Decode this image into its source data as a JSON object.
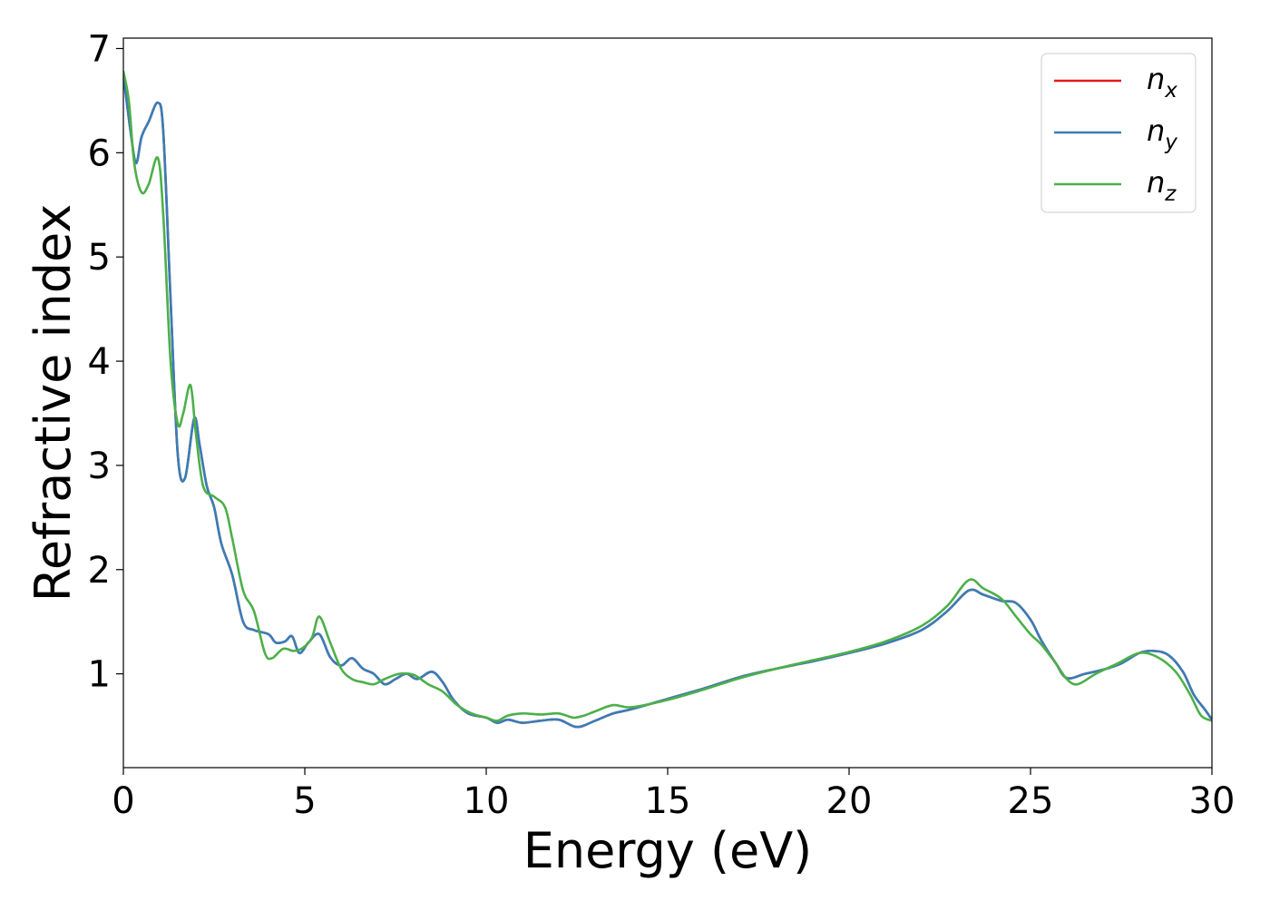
{
  "chart_data": {
    "type": "line",
    "title": "",
    "xlabel": "Energy (eV)",
    "ylabel": "Refractive index",
    "xlim": [
      0,
      30
    ],
    "ylim": [
      0.1,
      7.1
    ],
    "xticks": [
      0,
      5,
      10,
      15,
      20,
      25,
      30
    ],
    "xtick_labels": [
      "0",
      "5",
      "10",
      "15",
      "20",
      "25",
      "30"
    ],
    "yticks": [
      1,
      2,
      3,
      4,
      5,
      6,
      7
    ],
    "ytick_labels": [
      "1",
      "2",
      "3",
      "4",
      "5",
      "6",
      "7"
    ],
    "grid": false,
    "legend_position": "top-right",
    "series": [
      {
        "name": "n",
        "subscript": "x",
        "color": "#e41a1c",
        "x": [
          0,
          0.2,
          0.35,
          0.5,
          0.7,
          0.95,
          1.1,
          1.3,
          1.5,
          1.7,
          1.95,
          2.1,
          2.3,
          2.5,
          2.7,
          3.0,
          3.3,
          3.6,
          4.0,
          4.2,
          4.45,
          4.65,
          4.85,
          5.1,
          5.4,
          5.7,
          6.0,
          6.3,
          6.6,
          6.9,
          7.2,
          7.5,
          7.8,
          8.1,
          8.5,
          8.8,
          9.1,
          9.5,
          10.0,
          10.3,
          10.6,
          11.0,
          11.5,
          12.0,
          12.5,
          13.0,
          13.5,
          14.0,
          15.0,
          16.0,
          17.0,
          18.0,
          19.0,
          20.0,
          21.0,
          22.0,
          22.7,
          23.3,
          23.7,
          24.2,
          24.6,
          25.0,
          25.3,
          25.7,
          26.0,
          26.5,
          27.0,
          27.5,
          28.0,
          28.4,
          28.8,
          29.2,
          29.5,
          29.8,
          30.0
        ],
        "y": [
          6.75,
          6.2,
          5.9,
          6.15,
          6.3,
          6.48,
          6.2,
          4.6,
          3.1,
          2.88,
          3.45,
          3.2,
          2.8,
          2.6,
          2.25,
          1.95,
          1.5,
          1.42,
          1.38,
          1.3,
          1.31,
          1.36,
          1.2,
          1.3,
          1.38,
          1.16,
          1.08,
          1.15,
          1.05,
          1.0,
          0.9,
          0.95,
          1.0,
          0.95,
          1.02,
          0.92,
          0.75,
          0.62,
          0.58,
          0.53,
          0.56,
          0.53,
          0.55,
          0.56,
          0.49,
          0.55,
          0.62,
          0.66,
          0.76,
          0.86,
          0.97,
          1.05,
          1.12,
          1.2,
          1.29,
          1.42,
          1.6,
          1.8,
          1.76,
          1.7,
          1.68,
          1.52,
          1.32,
          1.1,
          0.96,
          1.0,
          1.04,
          1.1,
          1.2,
          1.22,
          1.18,
          1.02,
          0.8,
          0.66,
          0.56
        ]
      },
      {
        "name": "n",
        "subscript": "y",
        "color": "#377eb8",
        "x": [
          0,
          0.2,
          0.35,
          0.5,
          0.7,
          0.95,
          1.1,
          1.3,
          1.5,
          1.7,
          1.95,
          2.1,
          2.3,
          2.5,
          2.7,
          3.0,
          3.3,
          3.6,
          4.0,
          4.2,
          4.45,
          4.65,
          4.85,
          5.1,
          5.4,
          5.7,
          6.0,
          6.3,
          6.6,
          6.9,
          7.2,
          7.5,
          7.8,
          8.1,
          8.5,
          8.8,
          9.1,
          9.5,
          10.0,
          10.3,
          10.6,
          11.0,
          11.5,
          12.0,
          12.5,
          13.0,
          13.5,
          14.0,
          15.0,
          16.0,
          17.0,
          18.0,
          19.0,
          20.0,
          21.0,
          22.0,
          22.7,
          23.3,
          23.7,
          24.2,
          24.6,
          25.0,
          25.3,
          25.7,
          26.0,
          26.5,
          27.0,
          27.5,
          28.0,
          28.4,
          28.8,
          29.2,
          29.5,
          29.8,
          30.0
        ],
        "y": [
          6.75,
          6.2,
          5.9,
          6.15,
          6.3,
          6.48,
          6.2,
          4.6,
          3.1,
          2.88,
          3.45,
          3.2,
          2.8,
          2.6,
          2.25,
          1.95,
          1.5,
          1.42,
          1.38,
          1.3,
          1.31,
          1.36,
          1.2,
          1.3,
          1.38,
          1.16,
          1.08,
          1.15,
          1.05,
          1.0,
          0.9,
          0.95,
          1.0,
          0.95,
          1.02,
          0.92,
          0.75,
          0.62,
          0.58,
          0.53,
          0.56,
          0.53,
          0.55,
          0.56,
          0.49,
          0.55,
          0.62,
          0.66,
          0.76,
          0.86,
          0.97,
          1.05,
          1.12,
          1.2,
          1.29,
          1.42,
          1.6,
          1.8,
          1.76,
          1.7,
          1.68,
          1.52,
          1.32,
          1.1,
          0.96,
          1.0,
          1.04,
          1.1,
          1.2,
          1.22,
          1.18,
          1.02,
          0.8,
          0.66,
          0.56
        ]
      },
      {
        "name": "n",
        "subscript": "z",
        "color": "#4daf4a",
        "x": [
          0,
          0.15,
          0.3,
          0.5,
          0.7,
          0.95,
          1.1,
          1.3,
          1.5,
          1.65,
          1.85,
          2.0,
          2.2,
          2.5,
          2.8,
          3.0,
          3.3,
          3.6,
          3.9,
          4.1,
          4.4,
          4.7,
          4.95,
          5.2,
          5.4,
          5.7,
          6.0,
          6.3,
          6.6,
          6.9,
          7.2,
          7.6,
          8.0,
          8.4,
          8.8,
          9.2,
          9.6,
          10.0,
          10.3,
          10.6,
          11.0,
          11.5,
          12.0,
          12.4,
          12.7,
          13.0,
          13.5,
          14.0,
          15.0,
          16.0,
          17.0,
          18.0,
          19.0,
          20.0,
          21.0,
          22.0,
          22.7,
          23.3,
          23.7,
          24.2,
          24.6,
          25.0,
          25.3,
          25.7,
          26.0,
          26.3,
          26.8,
          27.4,
          28.0,
          28.5,
          29.0,
          29.4,
          29.7,
          30.0
        ],
        "y": [
          6.78,
          6.5,
          5.9,
          5.62,
          5.7,
          5.95,
          5.4,
          4.0,
          3.4,
          3.5,
          3.77,
          3.3,
          2.8,
          2.7,
          2.6,
          2.3,
          1.8,
          1.6,
          1.2,
          1.15,
          1.24,
          1.22,
          1.25,
          1.35,
          1.55,
          1.3,
          1.05,
          0.95,
          0.92,
          0.9,
          0.95,
          1.0,
          0.99,
          0.9,
          0.83,
          0.7,
          0.62,
          0.58,
          0.55,
          0.6,
          0.62,
          0.61,
          0.62,
          0.58,
          0.6,
          0.64,
          0.7,
          0.68,
          0.75,
          0.85,
          0.96,
          1.05,
          1.13,
          1.21,
          1.31,
          1.46,
          1.65,
          1.9,
          1.82,
          1.72,
          1.55,
          1.38,
          1.28,
          1.1,
          0.95,
          0.9,
          1.0,
          1.1,
          1.2,
          1.16,
          1.02,
          0.8,
          0.6,
          0.55
        ]
      }
    ]
  }
}
